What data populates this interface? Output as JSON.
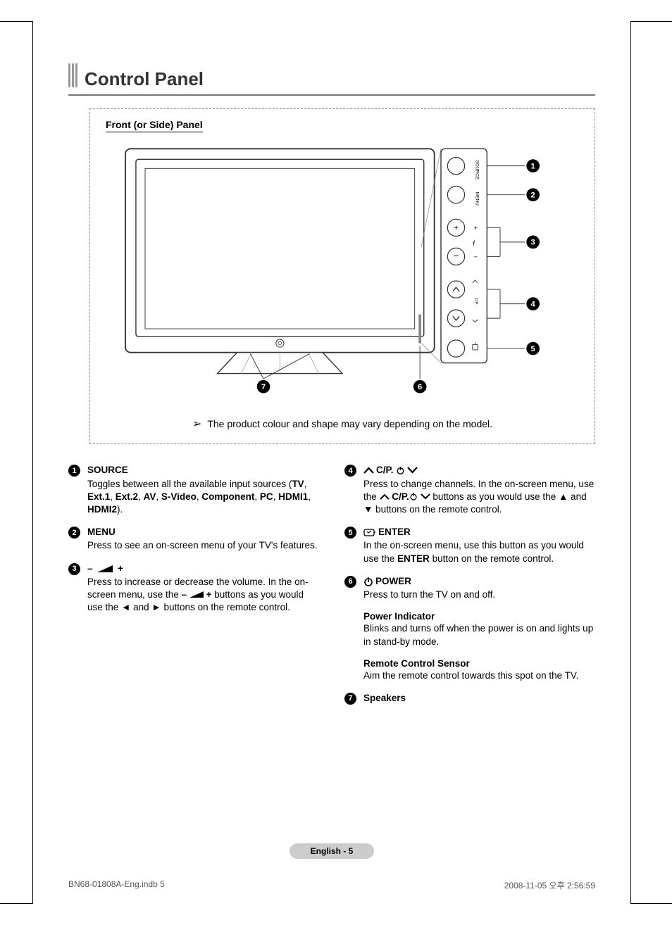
{
  "page": {
    "title": "Control Panel",
    "footer_label": "English - 5",
    "print_left": "BN68-01808A-Eng.indb   5",
    "print_right": "2008-11-05   오후 2:56:59"
  },
  "diagram": {
    "label": "Front (or Side) Panel",
    "note": "The product colour and shape may vary depending on the model.",
    "buttons": {
      "source": "SOURCE",
      "menu": "MENU",
      "cp": "C/P."
    },
    "callouts": [
      "1",
      "2",
      "3",
      "4",
      "5",
      "6",
      "7"
    ],
    "colors": {
      "stroke": "#333333",
      "fill": "#ffffff",
      "badge": "#000000",
      "badge_text": "#ffffff"
    }
  },
  "left_col": [
    {
      "num": "1",
      "title": "SOURCE",
      "html": "Toggles between all the available input sources (<b>TV</b>, <b>Ext.1</b>, <b>Ext.2</b>, <b>AV</b>, <b>S-Video</b>, <b>Component</b>, <b>PC</b>, <b>HDMI1</b>, <b>HDMI2</b>)."
    },
    {
      "num": "2",
      "title": "MENU",
      "html": "Press to see an on-screen menu of your TV's features."
    },
    {
      "num": "3",
      "title_sym": "vol",
      "html": "Press to increase or decrease the volume. In the on-screen menu, use the <b>– <svg width='20' height='9'><polygon points='0,9 20,0 20,9' fill='#000'/></svg> +</b> buttons as you would use the ◄ and ► buttons on the remote control."
    }
  ],
  "right_col": [
    {
      "num": "4",
      "title_sym": "cp",
      "title": "C/P.",
      "html": "Press to change channels. In the on-screen menu, use the <svg width='14' height='9'><polyline points='1,8 7,2 13,8' fill='none' stroke='#000' stroke-width='2'/></svg> <b>C/P.</b><svg width='12' height='12' style='vertical-align:-2px'><circle cx='6' cy='6' r='4' fill='none' stroke='#000' stroke-width='1.2'/><line x1='6' y1='0' x2='6' y2='5' stroke='#000' stroke-width='1.2'/></svg> <svg width='14' height='9'><polyline points='1,1 7,7 13,1' fill='none' stroke='#000' stroke-width='2'/></svg> buttons as you would use the ▲ and ▼ buttons on the remote control."
    },
    {
      "num": "5",
      "title_sym": "enter",
      "title": "ENTER",
      "html": "In the on-screen menu, use this button as you would use the <b>ENTER</b> button on the remote control."
    },
    {
      "num": "6",
      "title_sym": "power",
      "title": "POWER",
      "html": "Press to turn the TV on and off."
    }
  ],
  "right_sub": [
    {
      "title": "Power Indicator",
      "desc": "Blinks and turns off when the power is on and lights up in stand-by mode."
    },
    {
      "title": "Remote Control Sensor",
      "desc": "Aim the remote control towards this spot on the TV."
    }
  ],
  "right_last": {
    "num": "7",
    "title": "Speakers"
  }
}
